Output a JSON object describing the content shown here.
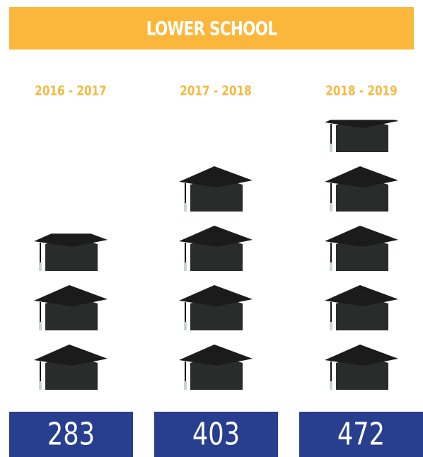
{
  "chart_data": {
    "type": "pictogram",
    "title": "LOWER SCHOOL",
    "categories": [
      "2016 - 2017",
      "2017 - 2018",
      "2018 - 2019"
    ],
    "values": [
      283,
      403,
      472
    ],
    "header_color": "#fbb73b",
    "label_color": "#f4b942",
    "box_color": "#283e8e",
    "icon_color": "#1b1b1b"
  }
}
